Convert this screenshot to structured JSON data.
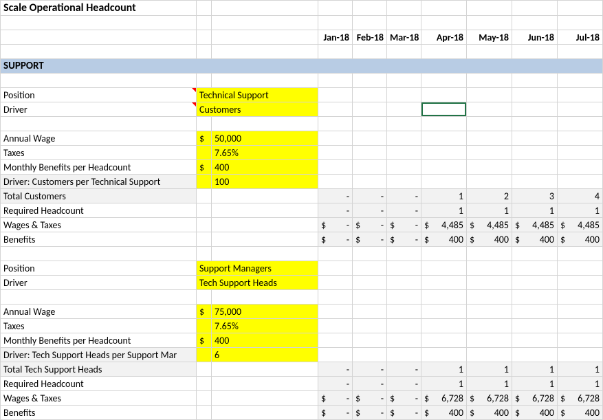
{
  "title": "Scale Operational Headcount",
  "months": [
    "Jan-18",
    "Feb-18",
    "Mar-18",
    "Apr-18",
    "May-18",
    "Jun-18",
    "Jul-18"
  ],
  "section_label": "SUPPORT",
  "labels": {
    "position": "Position",
    "driver": "Driver",
    "annual_wage": "Annual Wage",
    "taxes": "Taxes",
    "monthly_benefits": "Monthly Benefits per Headcount",
    "required_headcount": "Required Headcount",
    "wages_taxes": "Wages & Taxes",
    "benefits": "Benefits"
  },
  "p1": {
    "position": "Technical Support",
    "driver": "Customers",
    "annual_wage": "50,000",
    "taxes": "7.65%",
    "monthly_benefits": "400",
    "driver_ratio_label": "Driver:  Customers per Technical Support",
    "driver_ratio": "100",
    "total_label": "Total Customers",
    "total": [
      "-",
      "-",
      "-",
      "1",
      "2",
      "3",
      "4"
    ],
    "headcount": [
      "-",
      "-",
      "-",
      "1",
      "1",
      "1",
      "1"
    ],
    "wages_cur": [
      "$",
      "$",
      "$",
      "$",
      "$",
      "$",
      "$"
    ],
    "wages": [
      "-",
      "-",
      "-",
      "4,485",
      "4,485",
      "4,485",
      "4,485"
    ],
    "ben_cur": [
      "$",
      "$",
      "$",
      "$",
      "$",
      "$",
      "$"
    ],
    "ben": [
      "-",
      "-",
      "-",
      "400",
      "400",
      "400",
      "400"
    ]
  },
  "p2": {
    "position": "Support Managers",
    "driver": "Tech Support Heads",
    "annual_wage": "75,000",
    "taxes": "7.65%",
    "monthly_benefits": "400",
    "driver_ratio_label": "Driver:  Tech Support Heads per Support Mar",
    "driver_ratio": "6",
    "total_label": "Total Tech Support Heads",
    "total": [
      "-",
      "-",
      "-",
      "1",
      "1",
      "1",
      "1"
    ],
    "headcount": [
      "-",
      "-",
      "-",
      "1",
      "1",
      "1",
      "1"
    ],
    "wages_cur": [
      "$",
      "$",
      "$",
      "$",
      "$",
      "$",
      "$"
    ],
    "wages": [
      "-",
      "-",
      "-",
      "6,728",
      "6,728",
      "6,728",
      "6,728"
    ],
    "ben_cur": [
      "$",
      "$",
      "$",
      "$",
      "$",
      "$",
      "$"
    ],
    "ben": [
      "-",
      "-",
      "-",
      "400",
      "400",
      "400",
      "400"
    ]
  },
  "colors": {
    "section_bg": "#b8cce4",
    "input_bg": "#ffff00",
    "formula_bg": "#f2f2f2",
    "grid": "#d4d4d4",
    "selection": "#217346",
    "comment_marker": "#ff0000"
  }
}
